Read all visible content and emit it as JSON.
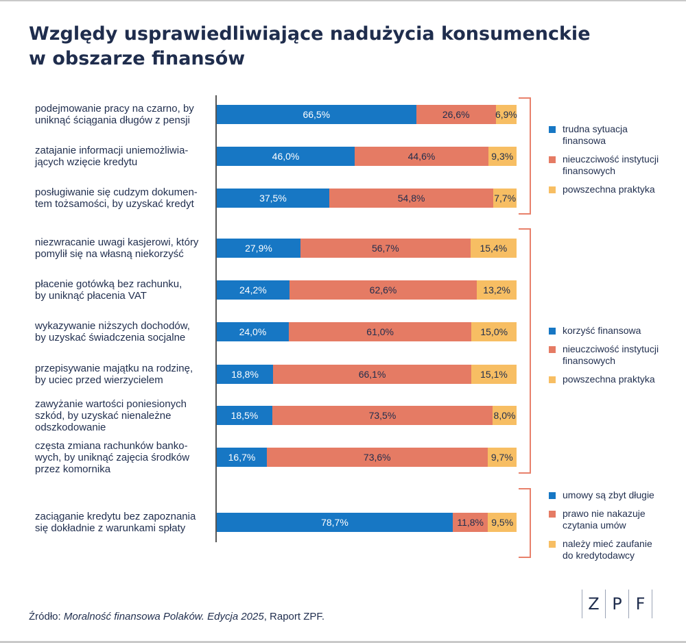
{
  "title": {
    "line1": "Względy usprawiedliwiające nadużycia konsumenckie",
    "line2": "w obszarze finansów"
  },
  "colors": {
    "blue": "#1777c4",
    "red": "#e57b64",
    "yellow": "#f7be63",
    "bracket": "#e8806a"
  },
  "chart_data": {
    "type": "bar",
    "orientation": "horizontal",
    "stacked": true,
    "xlim": [
      0,
      100
    ],
    "categories": [
      "podejmowanie pracy na czarno, by uniknąć ściągania długów z pensji",
      "zatajanie informacji uniemożliwia-jących wzięcie kredytu",
      "posługiwanie się cudzym dokumen-tem tożsamości, by uzyskać kredyt",
      "niezwracanie uwagi kasjerowi, który pomylił się na własną niekorzyść",
      "płacenie gotówką bez rachunku, by uniknąć płacenia VAT",
      "wykazywanie niższych dochodów, by uzyskać świadczenia socjalne",
      "przepisywanie majątku na rodzinę, by uciec przed wierzycielem",
      "zawyżanie wartości poniesionych szkód, by uzyskać nienależne odszkodowanie",
      "częsta zmiana rachunków banko-wych, by uniknąć zajęcia środków przez komornika",
      "zaciąganie kredytu bez zapoznania się dokładnie z warunkami spłaty"
    ],
    "category_lines": [
      [
        "podejmowanie pracy na czarno, by",
        "uniknąć ściągania długów z pensji"
      ],
      [
        "zatajanie informacji uniemożliwia-",
        "jących wzięcie kredytu"
      ],
      [
        "posługiwanie się cudzym dokumen-",
        "tem tożsamości, by uzyskać kredyt"
      ],
      [
        "niezwracanie uwagi kasjerowi, który",
        "pomylił się na własną niekorzyść"
      ],
      [
        "płacenie gotówką bez rachunku,",
        "by uniknąć płacenia VAT"
      ],
      [
        "wykazywanie niższych dochodów,",
        "by uzyskać świadczenia socjalne"
      ],
      [
        "przepisywanie majątku na rodzinę,",
        "by uciec przed wierzycielem"
      ],
      [
        "zawyżanie wartości poniesionych",
        "szkód, by uzyskać nienależne",
        "odszkodowanie"
      ],
      [
        "częsta zmiana rachunków banko-",
        "wych, by uniknąć zajęcia środków",
        "przez komornika"
      ],
      [
        "zaciąganie kredytu bez zapoznania",
        "się dokładnie z warunkami spłaty"
      ]
    ],
    "rows": [
      {
        "values": [
          66.5,
          26.6,
          6.9
        ],
        "labels": [
          "66,5%",
          "26,6%",
          "6,9%"
        ]
      },
      {
        "values": [
          46.0,
          44.6,
          9.3
        ],
        "labels": [
          "46,0%",
          "44,6%",
          "9,3%"
        ]
      },
      {
        "values": [
          37.5,
          54.8,
          7.7
        ],
        "labels": [
          "37,5%",
          "54,8%",
          "7,7%"
        ]
      },
      {
        "values": [
          27.9,
          56.7,
          15.4
        ],
        "labels": [
          "27,9%",
          "56,7%",
          "15,4%"
        ]
      },
      {
        "values": [
          24.2,
          62.6,
          13.2
        ],
        "labels": [
          "24,2%",
          "62,6%",
          "13,2%"
        ]
      },
      {
        "values": [
          24.0,
          61.0,
          15.0
        ],
        "labels": [
          "24,0%",
          "61,0%",
          "15,0%"
        ]
      },
      {
        "values": [
          18.8,
          66.1,
          15.1
        ],
        "labels": [
          "18,8%",
          "66,1%",
          "15,1%"
        ]
      },
      {
        "values": [
          18.5,
          73.5,
          8.0
        ],
        "labels": [
          "18,5%",
          "73,5%",
          "8,0%"
        ]
      },
      {
        "values": [
          16.7,
          73.6,
          9.7
        ],
        "labels": [
          "16,7%",
          "73,6%",
          "9,7%"
        ]
      },
      {
        "values": [
          78.7,
          11.8,
          9.5
        ],
        "labels": [
          "78,7%",
          "11,8%",
          "9,5%"
        ]
      }
    ],
    "groups": [
      {
        "rows": [
          0,
          1,
          2
        ],
        "legend": [
          {
            "lines": [
              "trudna sytuacja",
              "finansowa"
            ],
            "color": "blue"
          },
          {
            "lines": [
              "nieuczciwość instytucji",
              "finansowych"
            ],
            "color": "red"
          },
          {
            "lines": [
              "powszechna praktyka"
            ],
            "color": "yellow"
          }
        ]
      },
      {
        "rows": [
          3,
          4,
          5,
          6,
          7,
          8
        ],
        "legend": [
          {
            "lines": [
              "korzyść finansowa"
            ],
            "color": "blue"
          },
          {
            "lines": [
              "nieuczciwość instytucji",
              "finansowych"
            ],
            "color": "red"
          },
          {
            "lines": [
              "powszechna praktyka"
            ],
            "color": "yellow"
          }
        ]
      },
      {
        "rows": [
          9
        ],
        "legend": [
          {
            "lines": [
              "umowy są zbyt długie"
            ],
            "color": "blue"
          },
          {
            "lines": [
              "prawo nie nakazuje",
              "czytania umów"
            ],
            "color": "red"
          },
          {
            "lines": [
              "należy mieć zaufanie",
              "do kredytodawcy"
            ],
            "color": "yellow"
          }
        ]
      }
    ]
  },
  "source": {
    "prefix": "Źródło: ",
    "italic": "Moralność finansowa Polaków. Edycja 2025",
    "suffix": ", Raport ZPF."
  },
  "logo": {
    "letters": [
      "Z",
      "P",
      "F"
    ]
  }
}
